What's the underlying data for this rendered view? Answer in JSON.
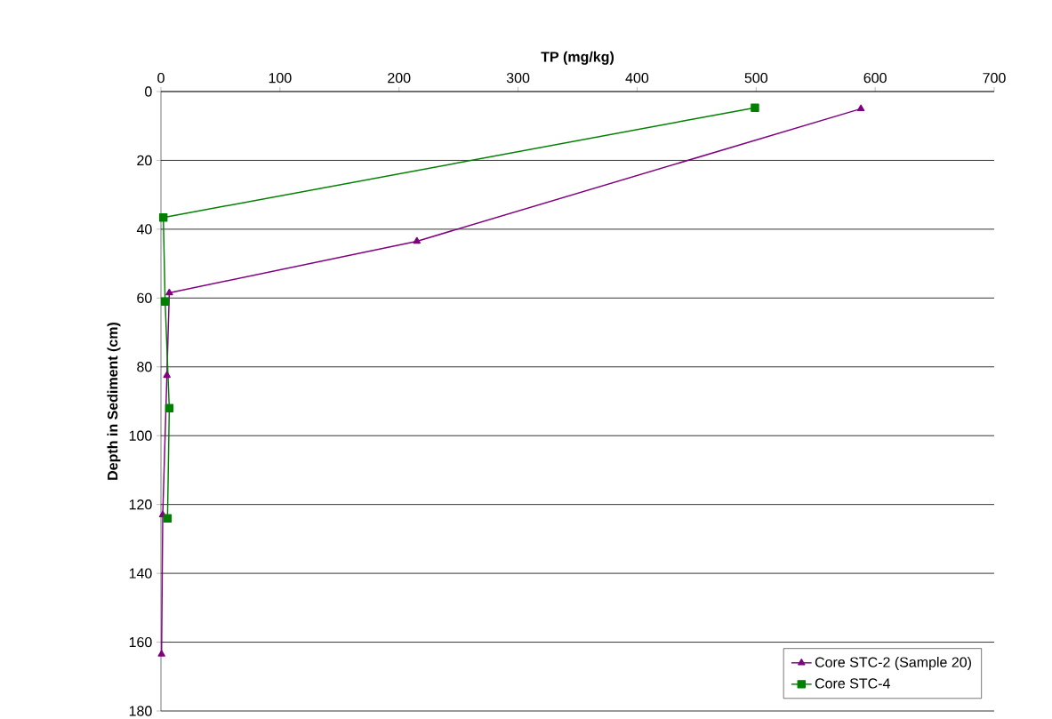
{
  "chart_data": {
    "type": "line",
    "xlabel": "TP (mg/kg)",
    "ylabel": "Depth in Sediment (cm)",
    "xlim": [
      0,
      700
    ],
    "xticks": [
      0,
      100,
      200,
      300,
      400,
      500,
      600,
      700
    ],
    "ylim": [
      180,
      0
    ],
    "yticks": [
      0,
      20,
      40,
      60,
      80,
      100,
      120,
      140,
      160,
      180
    ],
    "grid": "y",
    "legend": "bottom right",
    "series": [
      {
        "name": "Core STC-2 (Sample 20)",
        "color": "#800080",
        "marker": "triangle",
        "x": [
          588,
          215,
          7,
          5,
          1.5,
          0.5
        ],
        "values": [
          5,
          43.5,
          58.5,
          82.5,
          123,
          163.5
        ]
      },
      {
        "name": "Core STC-4",
        "color": "#008000",
        "marker": "square",
        "x": [
          499,
          2,
          3.5,
          7,
          5.5
        ],
        "values": [
          4.7,
          36.6,
          61,
          92,
          124
        ]
      }
    ]
  }
}
